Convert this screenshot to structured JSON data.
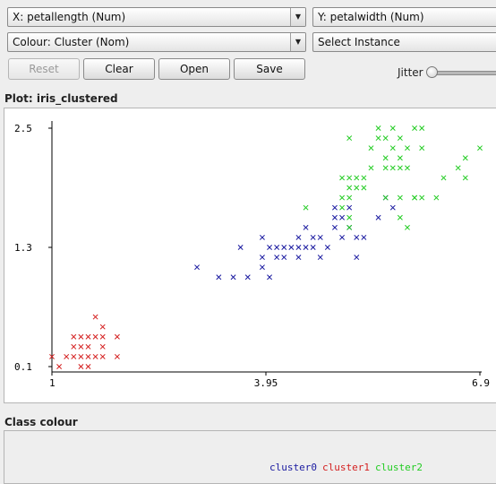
{
  "controls": {
    "x_axis": "X: petallength (Num)",
    "y_axis": "Y: petalwidth (Num)",
    "colour": "Colour: Cluster (Nom)",
    "instance": "Select Instance",
    "reset_label": "Reset",
    "clear_label": "Clear",
    "open_label": "Open",
    "save_label": "Save",
    "jitter_label": "Jitter",
    "jitter_value": 0
  },
  "plot_title": "Plot: iris_clustered",
  "class_colour_title": "Class colour",
  "colors": {
    "cluster0": "#1a1aa0",
    "cluster1": "#d42020",
    "cluster2": "#22cc22"
  },
  "chart_data": {
    "type": "scatter",
    "marker": "x",
    "xlim": [
      1,
      6.9
    ],
    "ylim": [
      0.1,
      2.5
    ],
    "x_ticks": [
      {
        "value": 1,
        "label": "1"
      },
      {
        "value": 3.95,
        "label": "3.95"
      },
      {
        "value": 6.9,
        "label": "6.9"
      }
    ],
    "y_ticks": [
      {
        "value": 0.1,
        "label": "0.1"
      },
      {
        "value": 1.3,
        "label": "1.3"
      },
      {
        "value": 2.5,
        "label": "2.5"
      }
    ],
    "series": [
      {
        "name": "cluster0",
        "points": [
          [
            3.0,
            1.1
          ],
          [
            3.3,
            1.0
          ],
          [
            3.5,
            1.0
          ],
          [
            3.6,
            1.3
          ],
          [
            3.7,
            1.0
          ],
          [
            3.9,
            1.1
          ],
          [
            3.9,
            1.2
          ],
          [
            4.0,
            1.0
          ],
          [
            4.0,
            1.3
          ],
          [
            4.1,
            1.3
          ],
          [
            4.2,
            1.2
          ],
          [
            4.3,
            1.3
          ],
          [
            4.4,
            1.2
          ],
          [
            4.4,
            1.3
          ],
          [
            4.4,
            1.4
          ],
          [
            4.5,
            1.3
          ],
          [
            4.5,
            1.5
          ],
          [
            4.6,
            1.3
          ],
          [
            4.6,
            1.4
          ],
          [
            4.7,
            1.2
          ],
          [
            4.7,
            1.4
          ],
          [
            4.8,
            1.3
          ],
          [
            4.9,
            1.5
          ],
          [
            4.9,
            1.6
          ],
          [
            4.9,
            1.7
          ],
          [
            5.0,
            1.4
          ],
          [
            5.0,
            1.6
          ],
          [
            5.1,
            1.5
          ],
          [
            5.1,
            1.7
          ],
          [
            5.2,
            1.2
          ],
          [
            5.2,
            1.4
          ],
          [
            5.3,
            1.4
          ],
          [
            5.5,
            1.6
          ],
          [
            5.6,
            1.8
          ],
          [
            5.7,
            1.7
          ],
          [
            3.9,
            1.4
          ],
          [
            4.1,
            1.2
          ],
          [
            4.2,
            1.3
          ]
        ]
      },
      {
        "name": "cluster1",
        "points": [
          [
            1.0,
            0.2
          ],
          [
            1.1,
            0.1
          ],
          [
            1.2,
            0.2
          ],
          [
            1.3,
            0.2
          ],
          [
            1.3,
            0.3
          ],
          [
            1.3,
            0.4
          ],
          [
            1.4,
            0.1
          ],
          [
            1.4,
            0.2
          ],
          [
            1.4,
            0.3
          ],
          [
            1.4,
            0.4
          ],
          [
            1.5,
            0.1
          ],
          [
            1.5,
            0.2
          ],
          [
            1.5,
            0.3
          ],
          [
            1.5,
            0.4
          ],
          [
            1.6,
            0.2
          ],
          [
            1.6,
            0.4
          ],
          [
            1.6,
            0.6
          ],
          [
            1.7,
            0.2
          ],
          [
            1.7,
            0.3
          ],
          [
            1.7,
            0.4
          ],
          [
            1.7,
            0.5
          ],
          [
            1.9,
            0.2
          ],
          [
            1.9,
            0.4
          ]
        ]
      },
      {
        "name": "cluster2",
        "points": [
          [
            5.1,
            1.5
          ],
          [
            5.1,
            1.6
          ],
          [
            5.0,
            1.7
          ],
          [
            5.0,
            1.8
          ],
          [
            5.1,
            1.8
          ],
          [
            5.1,
            1.9
          ],
          [
            5.2,
            1.9
          ],
          [
            5.1,
            2.0
          ],
          [
            5.0,
            2.0
          ],
          [
            5.2,
            2.0
          ],
          [
            5.3,
            1.9
          ],
          [
            5.3,
            2.0
          ],
          [
            5.4,
            2.1
          ],
          [
            5.4,
            2.3
          ],
          [
            5.5,
            2.4
          ],
          [
            5.5,
            2.5
          ],
          [
            5.6,
            1.8
          ],
          [
            5.6,
            2.1
          ],
          [
            5.6,
            2.2
          ],
          [
            5.6,
            2.4
          ],
          [
            5.7,
            2.1
          ],
          [
            5.7,
            2.3
          ],
          [
            5.7,
            2.5
          ],
          [
            5.8,
            1.6
          ],
          [
            5.8,
            1.8
          ],
          [
            5.8,
            2.1
          ],
          [
            5.8,
            2.2
          ],
          [
            5.8,
            2.4
          ],
          [
            5.9,
            2.1
          ],
          [
            5.9,
            2.3
          ],
          [
            6.0,
            1.8
          ],
          [
            6.0,
            2.5
          ],
          [
            6.1,
            1.8
          ],
          [
            6.1,
            2.3
          ],
          [
            6.1,
            2.5
          ],
          [
            6.3,
            1.8
          ],
          [
            6.4,
            2.0
          ],
          [
            6.6,
            2.1
          ],
          [
            6.7,
            2.2
          ],
          [
            6.7,
            2.0
          ],
          [
            6.9,
            2.3
          ],
          [
            5.1,
            2.4
          ],
          [
            5.9,
            1.5
          ],
          [
            6.0,
            1.8
          ],
          [
            4.5,
            1.7
          ]
        ]
      }
    ]
  }
}
